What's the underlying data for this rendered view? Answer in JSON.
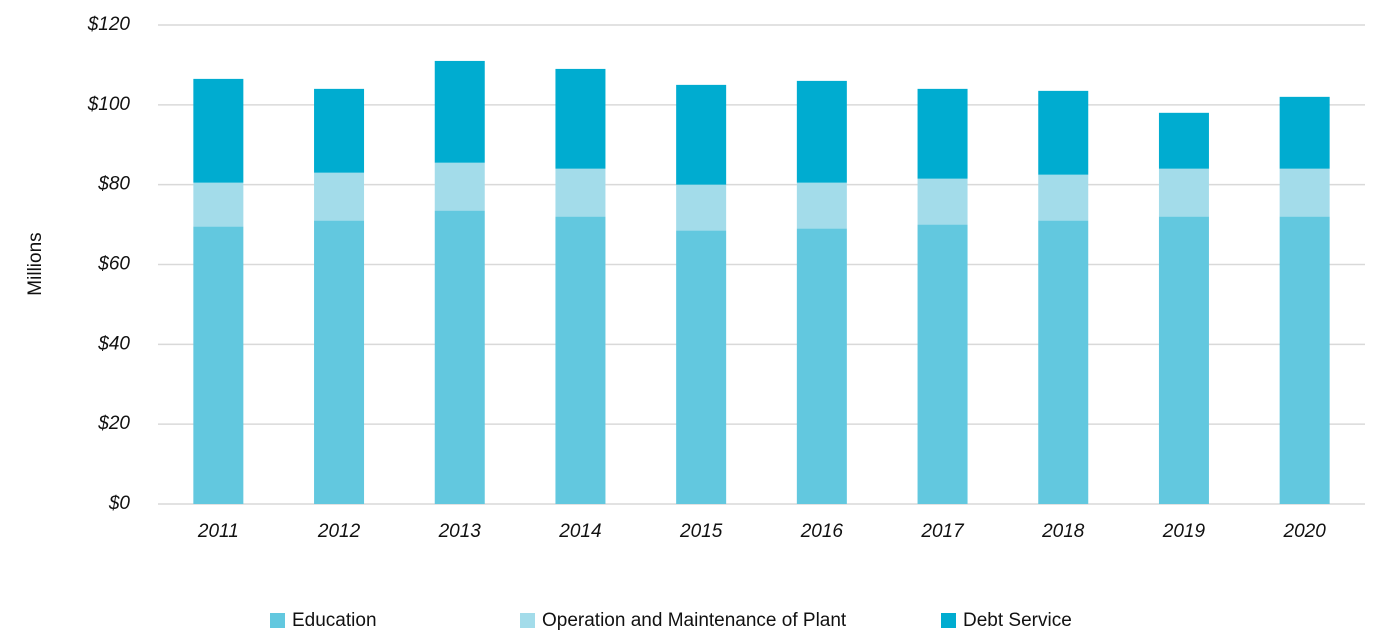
{
  "chart_data": {
    "type": "bar",
    "stacked": true,
    "ylabel": "Millions",
    "categories": [
      "2011",
      "2012",
      "2013",
      "2014",
      "2015",
      "2016",
      "2017",
      "2018",
      "2019",
      "2020"
    ],
    "series": [
      {
        "name": "Education",
        "color": "#62c8df",
        "values": [
          69.5,
          71,
          73.5,
          72,
          68.5,
          69,
          70,
          71,
          72,
          72
        ]
      },
      {
        "name": "Operation and Maintenance of Plant",
        "color": "#a3dcea",
        "values": [
          11,
          12,
          12,
          12,
          11.5,
          11.5,
          11.5,
          11.5,
          12,
          12
        ]
      },
      {
        "name": "Debt Service",
        "color": "#00acd0",
        "values": [
          26,
          21,
          25.5,
          25,
          25,
          25.5,
          22.5,
          21,
          14,
          18
        ]
      }
    ],
    "ylim": [
      0,
      120
    ],
    "yticks": [
      {
        "value": 0,
        "label": "$0"
      },
      {
        "value": 20,
        "label": "$20"
      },
      {
        "value": 40,
        "label": "$40"
      },
      {
        "value": 60,
        "label": "$60"
      },
      {
        "value": 80,
        "label": "$80"
      },
      {
        "value": 100,
        "label": "$100"
      },
      {
        "value": 120,
        "label": "$120"
      }
    ],
    "grid": true,
    "legend": "bottom"
  }
}
